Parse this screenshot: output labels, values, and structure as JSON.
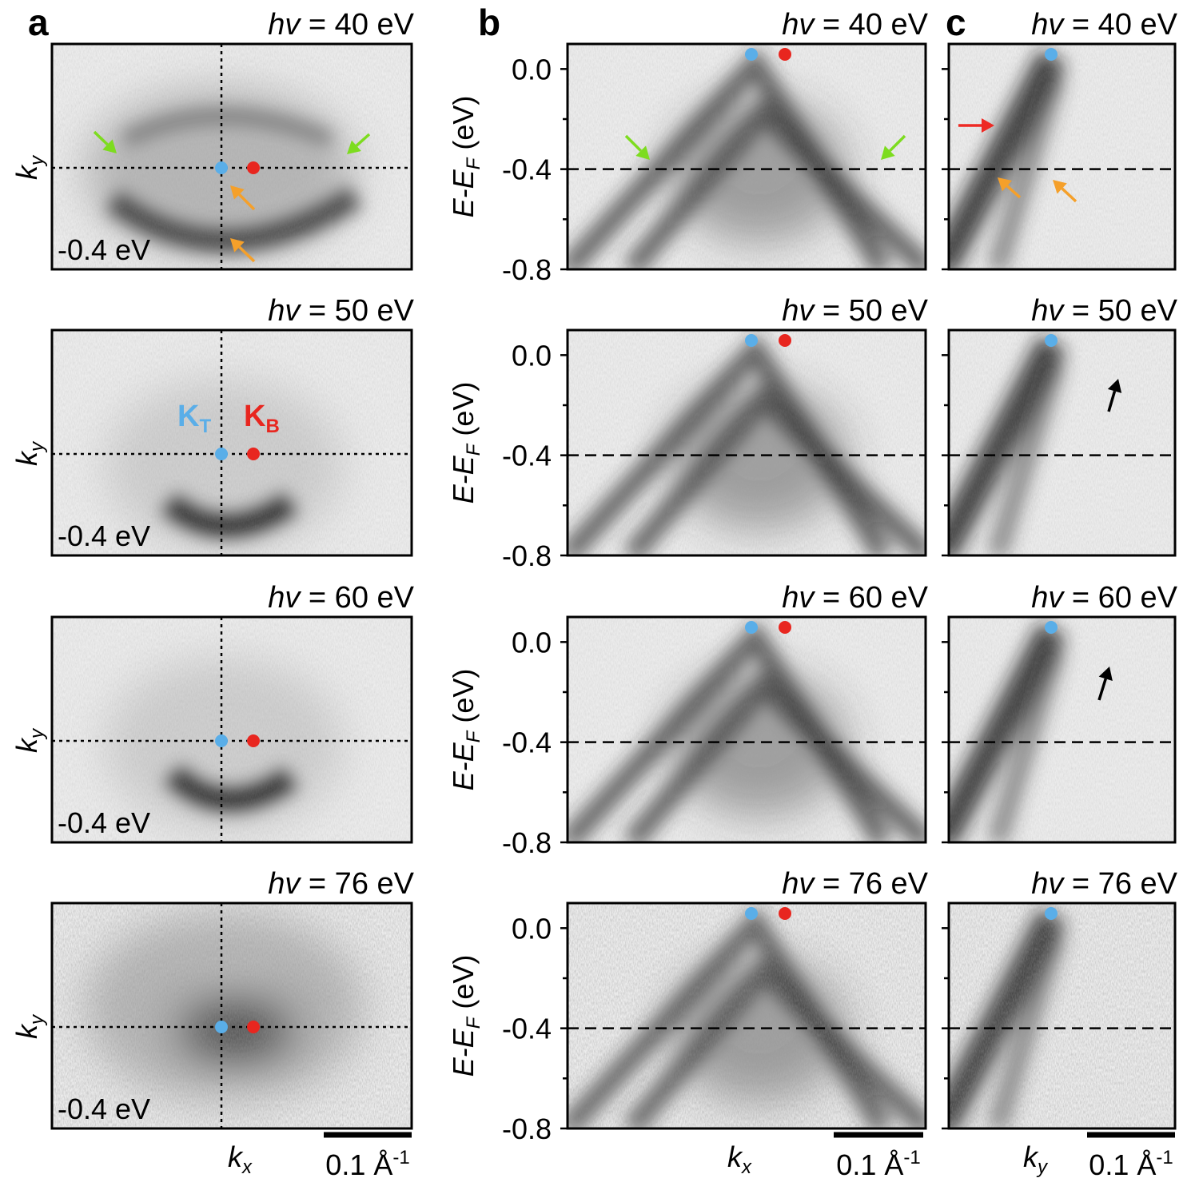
{
  "panel_labels": [
    "a",
    "b",
    "c"
  ],
  "photon_energy_symbol": "hv",
  "rows": [
    {
      "photon_energy": " = 40 eV",
      "constant_energy": "-0.4 eV"
    },
    {
      "photon_energy": " = 50 eV",
      "constant_energy": "-0.4 eV"
    },
    {
      "photon_energy": " = 60 eV",
      "constant_energy": "-0.4 eV"
    },
    {
      "photon_energy": " = 76 eV",
      "constant_energy": "-0.4 eV"
    }
  ],
  "k_labels": {
    "k": "k",
    "x": "x",
    "y": "y"
  },
  "energy_axis": {
    "main": "E-E",
    "subscript": "F",
    "unit": " (eV)",
    "ylim": [
      -0.8,
      0.1
    ],
    "ticks": [
      {
        "value": 0,
        "label": "0.0"
      },
      {
        "value": -0.4,
        "label": "-0.4"
      },
      {
        "value": -0.8,
        "label": "-0.8"
      }
    ],
    "minor_ticks": [
      -0.2,
      -0.6
    ],
    "cut_energy": -0.4
  },
  "points": {
    "K_T": {
      "letter": "K",
      "subscript": "T",
      "color": "#5aaee8"
    },
    "K_B": {
      "letter": "K",
      "subscript": "B",
      "color": "#e8261f"
    }
  },
  "scale_bar": {
    "value": "0.1 Å",
    "exponent": "-1"
  }
}
